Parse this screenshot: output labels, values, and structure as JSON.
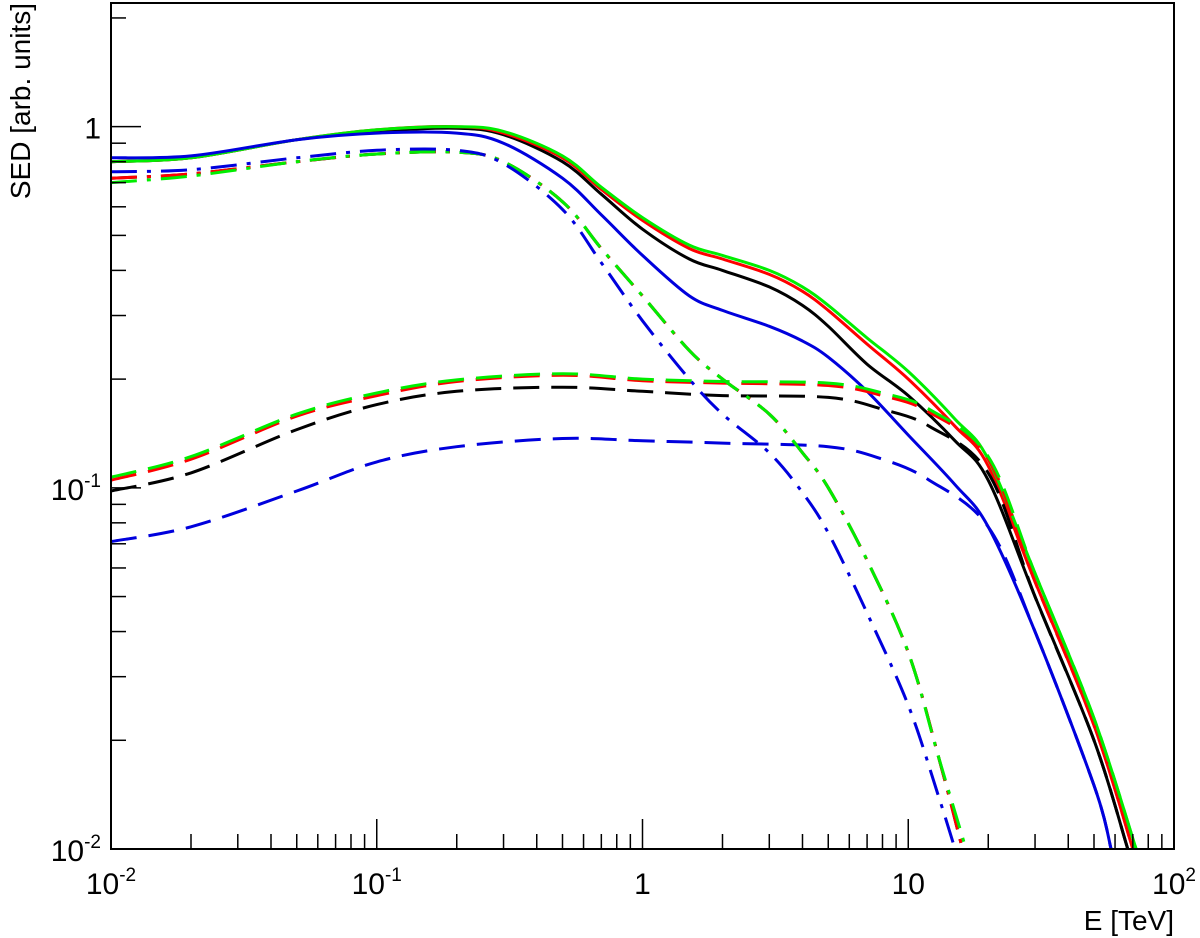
{
  "chart_data": {
    "type": "line",
    "title": "",
    "xlabel": "E [TeV]",
    "ylabel": "SED [arb. units]",
    "xscale": "log",
    "yscale": "log",
    "xlim": [
      0.01,
      100
    ],
    "ylim": [
      0.01,
      2.2
    ],
    "grid": false,
    "legend": "none",
    "x_ticks": [
      {
        "value": 0.01,
        "base": "10",
        "exp": "-2"
      },
      {
        "value": 0.1,
        "base": "10",
        "exp": "-1"
      },
      {
        "value": 1,
        "base": "1",
        "exp": ""
      },
      {
        "value": 10,
        "base": "10",
        "exp": ""
      },
      {
        "value": 100,
        "base": "10",
        "exp": "2"
      }
    ],
    "y_ticks": [
      {
        "value": 0.01,
        "base": "10",
        "exp": "-2"
      },
      {
        "value": 0.1,
        "base": "10",
        "exp": "-1"
      },
      {
        "value": 1,
        "base": "1",
        "exp": ""
      }
    ],
    "series": [
      {
        "color": "#000000",
        "dash": "solid",
        "points": [
          [
            0.01,
            0.8
          ],
          [
            0.02,
            0.82
          ],
          [
            0.05,
            0.92
          ],
          [
            0.1,
            0.97
          ],
          [
            0.2,
            0.99
          ],
          [
            0.3,
            0.95
          ],
          [
            0.5,
            0.8
          ],
          [
            0.7,
            0.65
          ],
          [
            1,
            0.52
          ],
          [
            1.5,
            0.43
          ],
          [
            2,
            0.4
          ],
          [
            3,
            0.36
          ],
          [
            4,
            0.32
          ],
          [
            5,
            0.28
          ],
          [
            7,
            0.22
          ],
          [
            10,
            0.18
          ],
          [
            15,
            0.135
          ],
          [
            20,
            0.105
          ],
          [
            30,
            0.05
          ],
          [
            50,
            0.02
          ],
          [
            67,
            0.01
          ]
        ]
      },
      {
        "color": "#ff0000",
        "dash": "solid",
        "points": [
          [
            0.01,
            0.8
          ],
          [
            0.02,
            0.82
          ],
          [
            0.05,
            0.92
          ],
          [
            0.1,
            0.98
          ],
          [
            0.2,
            1.0
          ],
          [
            0.3,
            0.96
          ],
          [
            0.5,
            0.82
          ],
          [
            0.7,
            0.67
          ],
          [
            1,
            0.55
          ],
          [
            1.5,
            0.46
          ],
          [
            2,
            0.43
          ],
          [
            3,
            0.39
          ],
          [
            4,
            0.35
          ],
          [
            5,
            0.31
          ],
          [
            7,
            0.25
          ],
          [
            10,
            0.2
          ],
          [
            15,
            0.148
          ],
          [
            20,
            0.115
          ],
          [
            30,
            0.055
          ],
          [
            50,
            0.022
          ],
          [
            70,
            0.01
          ]
        ]
      },
      {
        "color": "#00ee00",
        "dash": "solid",
        "points": [
          [
            0.01,
            0.8
          ],
          [
            0.02,
            0.82
          ],
          [
            0.05,
            0.92
          ],
          [
            0.1,
            0.98
          ],
          [
            0.2,
            1.0
          ],
          [
            0.3,
            0.97
          ],
          [
            0.5,
            0.83
          ],
          [
            0.7,
            0.68
          ],
          [
            1,
            0.56
          ],
          [
            1.5,
            0.47
          ],
          [
            2,
            0.44
          ],
          [
            3,
            0.4
          ],
          [
            4,
            0.36
          ],
          [
            5,
            0.32
          ],
          [
            7,
            0.26
          ],
          [
            10,
            0.21
          ],
          [
            15,
            0.155
          ],
          [
            20,
            0.12
          ],
          [
            30,
            0.058
          ],
          [
            50,
            0.023
          ],
          [
            72,
            0.01
          ]
        ]
      },
      {
        "color": "#0000dd",
        "dash": "solid",
        "points": [
          [
            0.01,
            0.82
          ],
          [
            0.02,
            0.83
          ],
          [
            0.05,
            0.92
          ],
          [
            0.1,
            0.96
          ],
          [
            0.2,
            0.96
          ],
          [
            0.3,
            0.9
          ],
          [
            0.5,
            0.72
          ],
          [
            0.7,
            0.57
          ],
          [
            1,
            0.44
          ],
          [
            1.5,
            0.34
          ],
          [
            2,
            0.31
          ],
          [
            3,
            0.28
          ],
          [
            4,
            0.255
          ],
          [
            5,
            0.23
          ],
          [
            7,
            0.185
          ],
          [
            10,
            0.14
          ],
          [
            15,
            0.102
          ],
          [
            20,
            0.078
          ],
          [
            30,
            0.04
          ],
          [
            50,
            0.015
          ],
          [
            58,
            0.01
          ]
        ]
      },
      {
        "color": "#000000",
        "dash": "dashed",
        "points": [
          [
            0.01,
            0.098
          ],
          [
            0.02,
            0.11
          ],
          [
            0.05,
            0.145
          ],
          [
            0.1,
            0.17
          ],
          [
            0.2,
            0.185
          ],
          [
            0.5,
            0.19
          ],
          [
            1,
            0.185
          ],
          [
            2,
            0.18
          ],
          [
            5,
            0.178
          ],
          [
            8,
            0.165
          ],
          [
            12,
            0.148
          ],
          [
            20,
            0.11
          ],
          [
            30,
            0.05
          ],
          [
            50,
            0.02
          ],
          [
            67,
            0.01
          ]
        ]
      },
      {
        "color": "#ff0000",
        "dash": "dashed",
        "points": [
          [
            0.01,
            0.105
          ],
          [
            0.02,
            0.12
          ],
          [
            0.05,
            0.158
          ],
          [
            0.1,
            0.18
          ],
          [
            0.2,
            0.197
          ],
          [
            0.5,
            0.205
          ],
          [
            1,
            0.198
          ],
          [
            2,
            0.195
          ],
          [
            5,
            0.192
          ],
          [
            8,
            0.18
          ],
          [
            12,
            0.162
          ],
          [
            20,
            0.12
          ],
          [
            30,
            0.055
          ],
          [
            50,
            0.022
          ],
          [
            70,
            0.01
          ]
        ]
      },
      {
        "color": "#00ee00",
        "dash": "dashed",
        "points": [
          [
            0.01,
            0.107
          ],
          [
            0.02,
            0.122
          ],
          [
            0.05,
            0.16
          ],
          [
            0.1,
            0.183
          ],
          [
            0.2,
            0.199
          ],
          [
            0.5,
            0.207
          ],
          [
            1,
            0.2
          ],
          [
            2,
            0.197
          ],
          [
            5,
            0.195
          ],
          [
            8,
            0.183
          ],
          [
            12,
            0.165
          ],
          [
            20,
            0.122
          ],
          [
            30,
            0.058
          ],
          [
            50,
            0.023
          ],
          [
            72,
            0.01
          ]
        ]
      },
      {
        "color": "#0000dd",
        "dash": "dashed",
        "points": [
          [
            0.01,
            0.071
          ],
          [
            0.02,
            0.078
          ],
          [
            0.05,
            0.098
          ],
          [
            0.1,
            0.118
          ],
          [
            0.2,
            0.13
          ],
          [
            0.5,
            0.137
          ],
          [
            1,
            0.135
          ],
          [
            2,
            0.133
          ],
          [
            5,
            0.13
          ],
          [
            8,
            0.12
          ],
          [
            12,
            0.105
          ],
          [
            20,
            0.078
          ],
          [
            30,
            0.04
          ],
          [
            50,
            0.015
          ],
          [
            58,
            0.01
          ]
        ]
      },
      {
        "color": "#000000",
        "dash": "dashdot",
        "points": [
          [
            0.01,
            0.72
          ],
          [
            0.02,
            0.74
          ],
          [
            0.05,
            0.8
          ],
          [
            0.1,
            0.84
          ],
          [
            0.2,
            0.85
          ],
          [
            0.3,
            0.8
          ],
          [
            0.5,
            0.62
          ],
          [
            0.7,
            0.46
          ],
          [
            1,
            0.34
          ],
          [
            1.5,
            0.24
          ],
          [
            2,
            0.2
          ],
          [
            3,
            0.16
          ],
          [
            4,
            0.125
          ],
          [
            5,
            0.1
          ],
          [
            7,
            0.063
          ],
          [
            10,
            0.035
          ],
          [
            13,
            0.018
          ],
          [
            16,
            0.01
          ]
        ]
      },
      {
        "color": "#ff0000",
        "dash": "dashdot",
        "points": [
          [
            0.01,
            0.72
          ],
          [
            0.02,
            0.74
          ],
          [
            0.05,
            0.8
          ],
          [
            0.1,
            0.84
          ],
          [
            0.2,
            0.85
          ],
          [
            0.3,
            0.8
          ],
          [
            0.5,
            0.62
          ],
          [
            0.7,
            0.46
          ],
          [
            1,
            0.34
          ],
          [
            1.5,
            0.24
          ],
          [
            2,
            0.2
          ],
          [
            3,
            0.16
          ],
          [
            4,
            0.125
          ],
          [
            5,
            0.1
          ],
          [
            7,
            0.063
          ],
          [
            10,
            0.035
          ],
          [
            13,
            0.018
          ],
          [
            16,
            0.01
          ]
        ]
      },
      {
        "color": "#00ee00",
        "dash": "dashdot",
        "points": [
          [
            0.01,
            0.7
          ],
          [
            0.02,
            0.73
          ],
          [
            0.05,
            0.8
          ],
          [
            0.1,
            0.84
          ],
          [
            0.2,
            0.85
          ],
          [
            0.3,
            0.8
          ],
          [
            0.5,
            0.62
          ],
          [
            0.7,
            0.46
          ],
          [
            1,
            0.34
          ],
          [
            1.5,
            0.24
          ],
          [
            2,
            0.2
          ],
          [
            3,
            0.16
          ],
          [
            4,
            0.125
          ],
          [
            5,
            0.1
          ],
          [
            7,
            0.063
          ],
          [
            10,
            0.035
          ],
          [
            13,
            0.018
          ],
          [
            16.5,
            0.01
          ]
        ]
      },
      {
        "color": "#0000dd",
        "dash": "dashdot",
        "points": [
          [
            0.01,
            0.75
          ],
          [
            0.02,
            0.76
          ],
          [
            0.05,
            0.82
          ],
          [
            0.1,
            0.86
          ],
          [
            0.2,
            0.86
          ],
          [
            0.3,
            0.79
          ],
          [
            0.5,
            0.59
          ],
          [
            0.7,
            0.42
          ],
          [
            1,
            0.29
          ],
          [
            1.5,
            0.2
          ],
          [
            2,
            0.16
          ],
          [
            3,
            0.125
          ],
          [
            4,
            0.097
          ],
          [
            5,
            0.075
          ],
          [
            7,
            0.045
          ],
          [
            10,
            0.025
          ],
          [
            13,
            0.014
          ],
          [
            15,
            0.01
          ]
        ]
      }
    ]
  }
}
